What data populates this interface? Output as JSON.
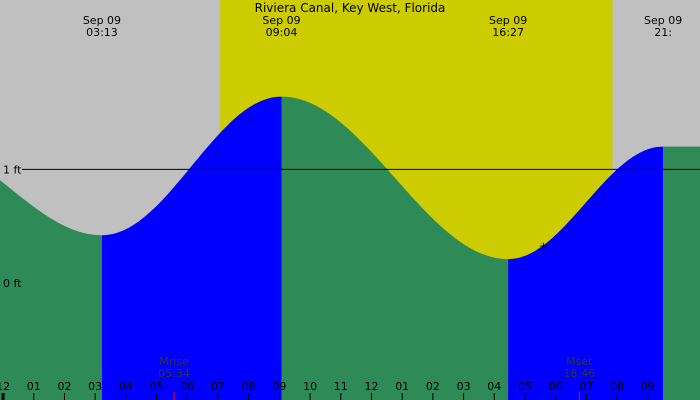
{
  "title": "Riviera Canal, Key West, Florida",
  "chart_data": {
    "type": "area",
    "title": "Riviera Canal, Key West, Florida",
    "ylabel": "",
    "xlabel": "",
    "y_ticks": [
      {
        "label": "1 ft",
        "value": 1
      },
      {
        "label": "0 ft",
        "value": 0
      }
    ],
    "ylim": [
      -1.03,
      2.49
    ],
    "xlim_hours": [
      -0.1,
      22.7
    ],
    "daylight": [
      {
        "start": 7.07,
        "end": 19.85,
        "color": "#cccc00"
      }
    ],
    "night_color": "#c0c0c0",
    "rising_color": "#0000ff",
    "falling_color": "#2e8b57",
    "tide_events": [
      {
        "date": "Sep 09",
        "time": "03:13",
        "hour": 3.22,
        "height_ft": 0.42,
        "type": "low"
      },
      {
        "date": "Sep 09",
        "time": "09:04",
        "hour": 9.07,
        "height_ft": 1.64,
        "type": "high"
      },
      {
        "date": "Sep 09",
        "time": "16:27",
        "hour": 16.45,
        "height_ft": 0.21,
        "type": "low"
      },
      {
        "date": "Sep 09",
        "time": "21:",
        "hour": 21.5,
        "height_ft": 1.2,
        "type": "high"
      }
    ],
    "start_height_ft": 0.83,
    "hour_ticks": [
      "1",
      "12",
      "01",
      "02",
      "03",
      "04",
      "05",
      "06",
      "07",
      "08",
      "09",
      "10",
      "11",
      "12",
      "01",
      "02",
      "03",
      "04",
      "05",
      "06",
      "07",
      "08",
      "09"
    ],
    "moon_events": [
      {
        "label": "Mrise",
        "time": "05:34",
        "hour": 5.57
      },
      {
        "label": "Mset",
        "time": "18:46",
        "hour": 18.77
      }
    ],
    "marker": {
      "symbol": "+",
      "hour": 17.6
    }
  }
}
